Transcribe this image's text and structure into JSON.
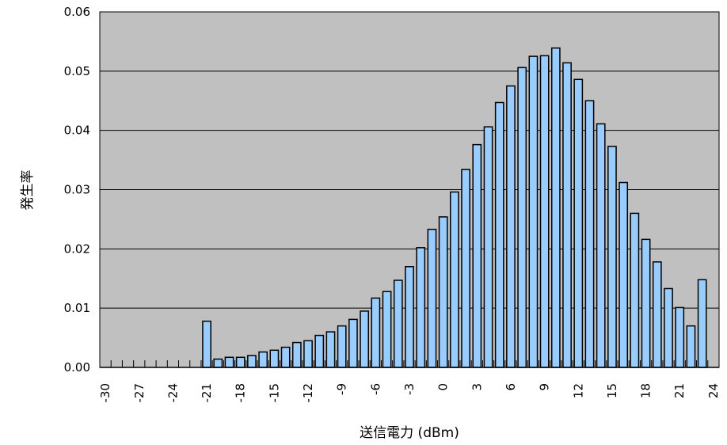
{
  "chart_data": {
    "type": "bar",
    "title": "",
    "xlabel": "送信電力 (dBm)",
    "ylabel": "発生率",
    "x": [
      -30,
      -29,
      -28,
      -27,
      -26,
      -25,
      -24,
      -23,
      -22,
      -21,
      -20,
      -19,
      -18,
      -17,
      -16,
      -15,
      -14,
      -13,
      -12,
      -11,
      -10,
      -9,
      -8,
      -7,
      -6,
      -5,
      -4,
      -3,
      -2,
      -1,
      0,
      1,
      2,
      3,
      4,
      5,
      6,
      7,
      8,
      9,
      10,
      11,
      12,
      13,
      14,
      15,
      16,
      17,
      18,
      19,
      20,
      21,
      22,
      23,
      24
    ],
    "values": [
      0,
      0,
      0,
      0,
      0,
      0,
      0,
      0,
      0,
      0.0078,
      0.0014,
      0.0017,
      0.0017,
      0.002,
      0.0026,
      0.0029,
      0.0034,
      0.0042,
      0.0045,
      0.0054,
      0.006,
      0.007,
      0.0081,
      0.0095,
      0.0117,
      0.0128,
      0.0147,
      0.017,
      0.0202,
      0.0233,
      0.0254,
      0.0296,
      0.0334,
      0.0376,
      0.0406,
      0.0447,
      0.0475,
      0.0506,
      0.0525,
      0.0526,
      0.0539,
      0.0514,
      0.0486,
      0.045,
      0.0411,
      0.0373,
      0.0312,
      0.026,
      0.0216,
      0.0178,
      0.0133,
      0.0101,
      0.007,
      0.0148,
      0
    ],
    "xtick_labels": [
      "-30",
      "-27",
      "-24",
      "-21",
      "-18",
      "-15",
      "-12",
      "-9",
      "-6",
      "-3",
      "0",
      "3",
      "6",
      "9",
      "12",
      "15",
      "18",
      "21",
      "24"
    ],
    "ytick_labels": [
      "0.00",
      "0.01",
      "0.02",
      "0.03",
      "0.04",
      "0.05",
      "0.06"
    ],
    "ylim": [
      0,
      0.06
    ],
    "xlim": [
      -30,
      24
    ],
    "grid": "horizontal",
    "colors": {
      "plot_bg": "#c0c0c0",
      "bar_fill": "#99ccff",
      "bar_edge": "#000000"
    }
  }
}
